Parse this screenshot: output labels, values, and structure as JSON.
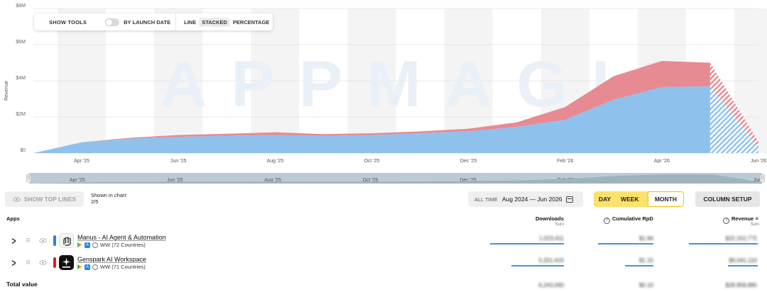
{
  "chart_data": {
    "type": "area",
    "stacked": true,
    "ylabel": "Revenue",
    "y_ticks": [
      "$0",
      "$2M",
      "$4M",
      "$6M",
      "$8M"
    ],
    "ylim": [
      0,
      8000000
    ],
    "x_tick_labels": [
      "Apr '25",
      "Jun '25",
      "Aug '25",
      "Oct '25",
      "Dec '25",
      "Feb '26",
      "Apr '26",
      "Jun '26"
    ],
    "x": [
      "Mar '25",
      "Apr '25",
      "May '25",
      "Jun '25",
      "Jul '25",
      "Aug '25",
      "Sep '25",
      "Oct '25",
      "Nov '25",
      "Dec '25",
      "Jan '26",
      "Feb '26",
      "Mar '26",
      "Apr '26",
      "May '26",
      "Jun '26"
    ],
    "series": [
      {
        "name": "Manus - AI Agent & Automation",
        "color": "#8ec2ec",
        "values": [
          0,
          600000,
          800000,
          900000,
          960000,
          1000000,
          950000,
          1000000,
          1100000,
          1200000,
          1450000,
          1850000,
          2950000,
          3650000,
          3700000,
          350000
        ]
      },
      {
        "name": "Genspark AI Workspace",
        "color": "#e88a92",
        "values": [
          0,
          0,
          50000,
          100000,
          110000,
          150000,
          100000,
          100000,
          100000,
          150000,
          250000,
          700000,
          1300000,
          1450000,
          1300000,
          280000
        ]
      }
    ],
    "projected_from": "May '26",
    "grid": true
  },
  "watermark": "APPMAGIC",
  "toolbar": {
    "show_tools": "SHOW TOOLS",
    "by_launch_date": "BY LAUNCH DATE",
    "modes": [
      "LINE",
      "STACKED",
      "PERCENTAGE"
    ],
    "active_mode": "STACKED"
  },
  "navigator": {
    "labels": [
      "Apr '25",
      "Jun '25",
      "Aug '25",
      "Oct '25",
      "Dec '25",
      "Feb '26",
      "Apr '26",
      "Jun '26"
    ]
  },
  "controls": {
    "show_top_lines": "SHOW TOP LINES",
    "shown_in_chart_label": "Shown in chart",
    "shown_in_chart_value": "2/5",
    "all_time": "ALL TIME",
    "date_range": "Aug 2024 — Jun 2026",
    "granularity": [
      "DAY",
      "WEEK",
      "MONTH"
    ],
    "active_granularity": "MONTH",
    "column_setup": "COLUMN SETUP"
  },
  "table": {
    "apps_header": "Apps",
    "columns": [
      {
        "label": "Downloads",
        "sub": "Sum"
      },
      {
        "label": "Cumulative RpD",
        "sub": ""
      },
      {
        "label": "Revenue",
        "sub": "Sum"
      }
    ],
    "rows": [
      {
        "flag": "R",
        "name": "Manus - AI Agent & Automation",
        "region": "WW (72 Countries)",
        "color": "#2f7fe0",
        "downloads": "1,023,411",
        "rpd": "$1.84",
        "revenue": "$22,152,772"
      },
      {
        "flag": "R",
        "name": "Genspark AI Workspace",
        "region": "WW (71 Countries)",
        "color": "#d8202a",
        "downloads": "5,201,410",
        "rpd": "$1.15",
        "revenue": "$6,041,110"
      }
    ],
    "total_label": "Total value",
    "total": {
      "downloads": "6,243,060",
      "rpd": "$0.10",
      "revenue": "$28,958,885"
    }
  }
}
